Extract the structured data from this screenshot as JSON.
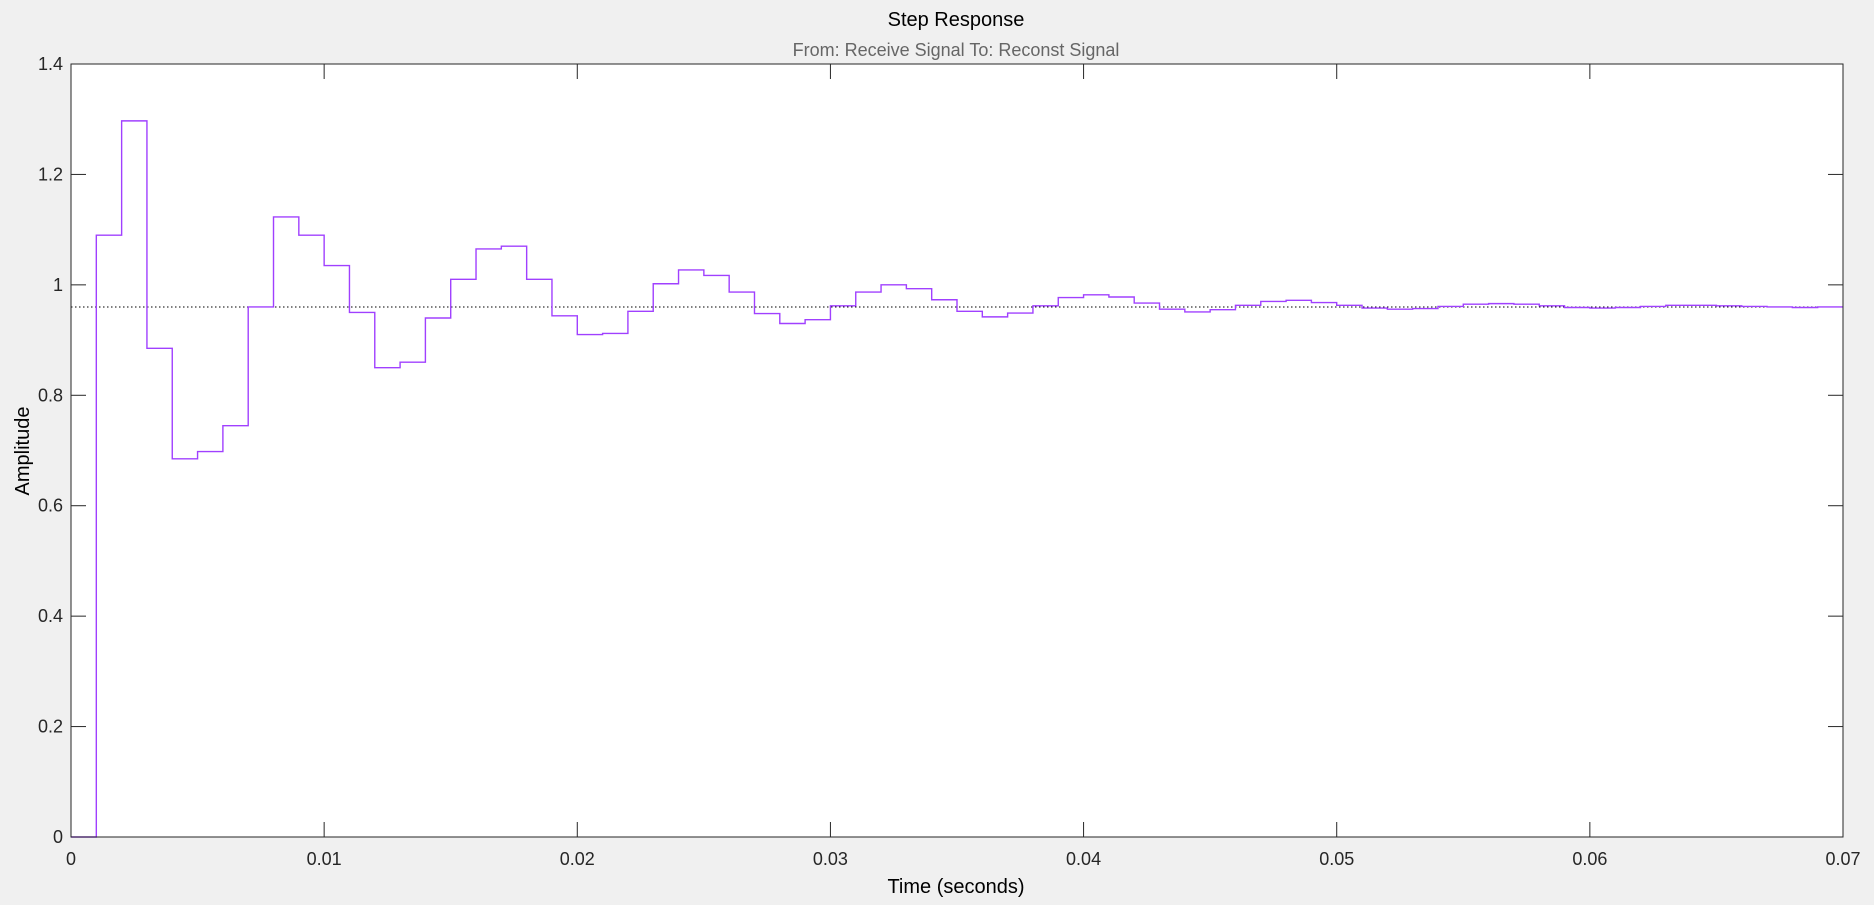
{
  "chart_data": {
    "type": "line",
    "title": "Step Response",
    "subtitle": "From: Receive Signal  To: Reconst Signal",
    "xlabel": "Time (seconds)",
    "ylabel": "Amplitude",
    "xlim": [
      0,
      0.07
    ],
    "ylim": [
      0,
      1.4
    ],
    "xticks": [
      0,
      0.01,
      0.02,
      0.03,
      0.04,
      0.05,
      0.06,
      0.07
    ],
    "xtick_labels": [
      "0",
      "0.01",
      "0.02",
      "0.03",
      "0.04",
      "0.05",
      "0.06",
      "0.07"
    ],
    "yticks": [
      0,
      0.2,
      0.4,
      0.6,
      0.8,
      1.0,
      1.2,
      1.4
    ],
    "ytick_labels": [
      "0",
      "0.2",
      "0.4",
      "0.6",
      "0.8",
      "1",
      "1.2",
      "1.4"
    ],
    "grid": false,
    "step_style": "stairs",
    "sample_time": 0.001,
    "steady_state_value": 0.96,
    "series": [
      {
        "color": "#a040ff",
        "values": [
          0,
          1.09,
          1.297,
          0.885,
          0.685,
          0.698,
          0.745,
          0.96,
          1.123,
          1.09,
          1.035,
          0.95,
          0.85,
          0.86,
          0.94,
          1.01,
          1.065,
          1.07,
          1.01,
          0.944,
          0.91,
          0.912,
          0.952,
          1.002,
          1.027,
          1.017,
          0.987,
          0.948,
          0.93,
          0.937,
          0.962,
          0.987,
          1.0,
          0.993,
          0.973,
          0.952,
          0.942,
          0.949,
          0.962,
          0.977,
          0.982,
          0.978,
          0.967,
          0.956,
          0.951,
          0.955,
          0.963,
          0.97,
          0.972,
          0.968,
          0.963,
          0.958,
          0.956,
          0.957,
          0.961,
          0.965,
          0.966,
          0.965,
          0.962,
          0.959,
          0.958,
          0.959,
          0.961,
          0.963,
          0.963,
          0.962,
          0.961,
          0.96,
          0.959,
          0.96
        ]
      }
    ],
    "reference_line": {
      "value": 0.96,
      "style": "dotted",
      "color": "#000000"
    }
  }
}
